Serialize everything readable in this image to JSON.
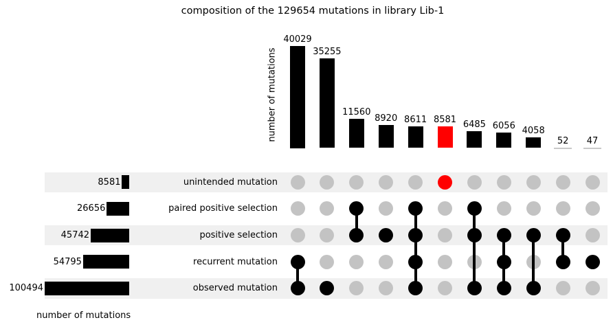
{
  "colors": {
    "bar_default": "#000000",
    "bar_highlight": "#ff0000",
    "dot_active": "#000000",
    "dot_highlight": "#ff0000",
    "dot_inactive": "#c3c3c3",
    "stripe": "#f0f0f0",
    "tiny_bar_underline": "#c9c9c9"
  },
  "chart_data": {
    "type": "bar",
    "subtype": "upset-plot",
    "title": "composition of the 129654 mutations in library Lib-1",
    "total_mutations": 129654,
    "library": "Lib-1",
    "ylabel": "number of mutations",
    "set_size_axis_label": "number of mutations",
    "ylim": [
      0,
      40029
    ],
    "grid": false,
    "legend": "none",
    "sets": [
      {
        "name": "unintended mutation",
        "size": 8581
      },
      {
        "name": "paired positive selection",
        "size": 26656
      },
      {
        "name": "positive selection",
        "size": 45742
      },
      {
        "name": "recurrent mutation",
        "size": 54795
      },
      {
        "name": "observed mutation",
        "size": 100494
      }
    ],
    "intersections": [
      {
        "value": 40029,
        "members": [
          "recurrent mutation",
          "observed mutation"
        ],
        "highlight": false
      },
      {
        "value": 35255,
        "members": [
          "observed mutation"
        ],
        "highlight": false
      },
      {
        "value": 11560,
        "members": [
          "paired positive selection",
          "positive selection"
        ],
        "highlight": false
      },
      {
        "value": 8920,
        "members": [
          "positive selection"
        ],
        "highlight": false
      },
      {
        "value": 8611,
        "members": [
          "paired positive selection",
          "positive selection",
          "recurrent mutation",
          "observed mutation"
        ],
        "highlight": false
      },
      {
        "value": 8581,
        "members": [
          "unintended mutation"
        ],
        "highlight": true
      },
      {
        "value": 6485,
        "members": [
          "paired positive selection",
          "positive selection",
          "observed mutation"
        ],
        "highlight": false
      },
      {
        "value": 6056,
        "members": [
          "positive selection",
          "recurrent mutation",
          "observed mutation"
        ],
        "highlight": false
      },
      {
        "value": 4058,
        "members": [
          "positive selection",
          "observed mutation"
        ],
        "highlight": false
      },
      {
        "value": 52,
        "members": [
          "positive selection",
          "recurrent mutation"
        ],
        "highlight": false
      },
      {
        "value": 47,
        "members": [
          "recurrent mutation"
        ],
        "highlight": false
      }
    ]
  }
}
